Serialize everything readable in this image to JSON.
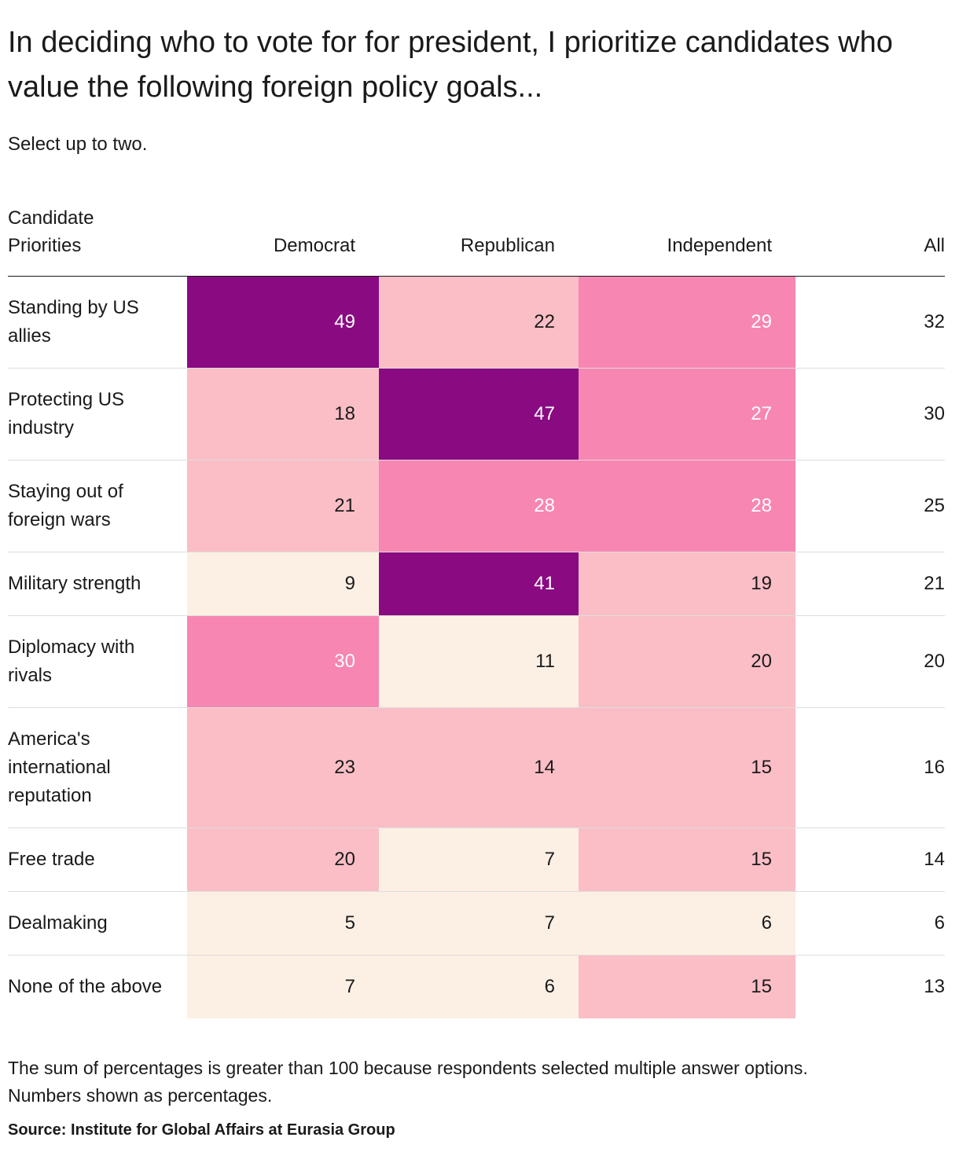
{
  "title": "In deciding who to vote for for president, I prioritize candidates who value the following foreign policy goals...",
  "subtitle": "Select up to two.",
  "chart_data": {
    "type": "heatmap",
    "row_header_label": "Candidate\nPriorities",
    "columns": [
      "Democrat",
      "Republican",
      "Independent",
      "All"
    ],
    "rows": [
      {
        "label": "Standing by US allies",
        "values": [
          49,
          22,
          29,
          32
        ]
      },
      {
        "label": "Protecting US industry",
        "values": [
          18,
          47,
          27,
          30
        ]
      },
      {
        "label": "Staying out of foreign wars",
        "values": [
          21,
          28,
          28,
          25
        ]
      },
      {
        "label": "Military strength",
        "values": [
          9,
          41,
          19,
          21
        ]
      },
      {
        "label": "Diplomacy with rivals",
        "values": [
          30,
          11,
          20,
          20
        ]
      },
      {
        "label": "America's international reputation",
        "values": [
          23,
          14,
          15,
          16
        ]
      },
      {
        "label": "Free trade",
        "values": [
          20,
          7,
          15,
          14
        ]
      },
      {
        "label": "Dealmaking",
        "values": [
          5,
          7,
          6,
          6
        ]
      },
      {
        "label": "None of the above",
        "values": [
          7,
          6,
          15,
          13
        ]
      }
    ],
    "color_bins": [
      {
        "min": 40,
        "bg": "#8A0A82",
        "text": "#FFFFFF"
      },
      {
        "min": 25,
        "bg": "#F786B2",
        "text": "#FFFFFF"
      },
      {
        "min": 13,
        "bg": "#FBBEC6",
        "text": "#1A1A1A"
      },
      {
        "min": 0,
        "bg": "#FCF0E4",
        "text": "#1A1A1A"
      }
    ],
    "uncolored_column": "All",
    "legend_position": "none",
    "grid": "row-separators"
  },
  "footnote_line1": "The sum of percentages is greater than 100 because respondents selected multiple answer options.",
  "footnote_line2": "Numbers shown as percentages.",
  "source": "Source: Institute for Global Affairs at Eurasia Group"
}
